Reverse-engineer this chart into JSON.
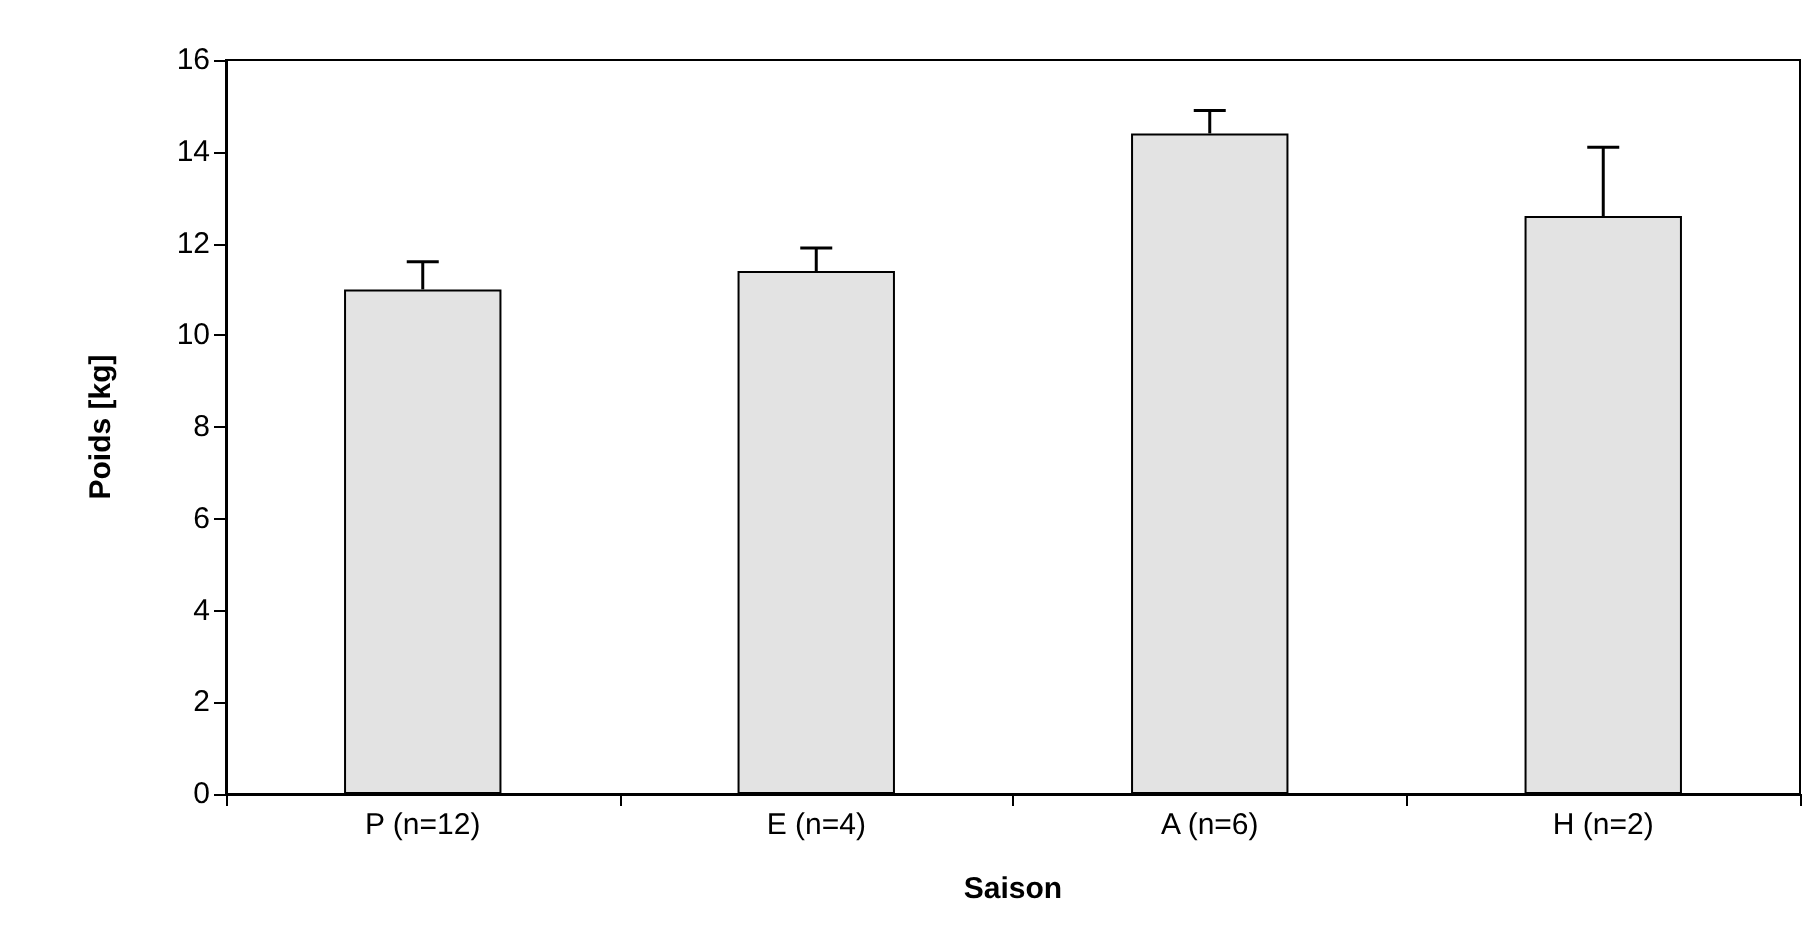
{
  "chart_data": {
    "type": "bar",
    "xlabel": "Saison",
    "ylabel": "Poids [kg]",
    "categories": [
      "P (n=12)",
      "E (n=4)",
      "A (n=6)",
      "H (n=2)"
    ],
    "values": [
      11.0,
      11.4,
      14.4,
      12.6
    ],
    "errors": [
      [
        11.0,
        11.6
      ],
      [
        11.4,
        11.9
      ],
      [
        14.4,
        14.9
      ],
      [
        12.6,
        14.1
      ]
    ],
    "color": "#e3e3e3",
    "ylim": [
      0,
      16
    ],
    "yticks": [
      0,
      2,
      4,
      6,
      8,
      10,
      12,
      14,
      16
    ],
    "grid": false
  }
}
